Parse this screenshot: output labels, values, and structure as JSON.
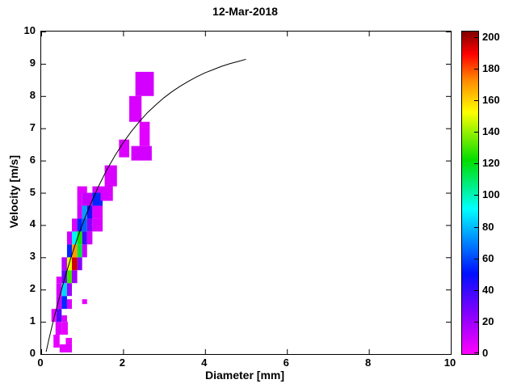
{
  "title": "12-Mar-2018",
  "axes": {
    "xlabel": "Diameter [mm]",
    "ylabel": "Velocity [m/s]",
    "xlim": [
      0,
      10
    ],
    "ylim": [
      0,
      10
    ],
    "xticks": [
      0,
      2,
      4,
      6,
      8,
      10
    ],
    "yticks": [
      0,
      1,
      2,
      3,
      4,
      5,
      6,
      7,
      8,
      9,
      10
    ]
  },
  "colorbar": {
    "min": 0,
    "max": 204,
    "ticks": [
      0,
      20,
      40,
      60,
      80,
      100,
      120,
      140,
      160,
      180,
      200
    ],
    "stops": [
      {
        "t": 0.0,
        "c": "#ff00ff"
      },
      {
        "t": 0.13,
        "c": "#8000ff"
      },
      {
        "t": 0.25,
        "c": "#0010ff"
      },
      {
        "t": 0.45,
        "c": "#00ffff"
      },
      {
        "t": 0.6,
        "c": "#00dd00"
      },
      {
        "t": 0.75,
        "c": "#ffff00"
      },
      {
        "t": 0.85,
        "c": "#ff8800"
      },
      {
        "t": 0.93,
        "c": "#ff0000"
      },
      {
        "t": 1.0,
        "c": "#7f0000"
      }
    ]
  },
  "chart_data": {
    "type": "heatmap",
    "title": "12-Mar-2018",
    "xlabel": "Diameter [mm]",
    "ylabel": "Velocity [m/s]",
    "xlim": [
      0,
      10
    ],
    "ylim": [
      0,
      10
    ],
    "grid": false,
    "legend": "colorbar-right",
    "cell_format": [
      "x_left_mm",
      "y_bottom_ms",
      "width_mm",
      "height_ms",
      "count_value"
    ],
    "cells": [
      [
        0.45,
        0.05,
        0.3,
        0.25,
        6
      ],
      [
        0.3,
        0.2,
        0.15,
        0.4,
        5
      ],
      [
        0.6,
        0.3,
        0.15,
        0.2,
        4
      ],
      [
        0.35,
        0.6,
        0.15,
        0.4,
        7
      ],
      [
        0.5,
        0.6,
        0.15,
        0.4,
        5
      ],
      [
        0.25,
        1.0,
        0.12,
        0.4,
        4
      ],
      [
        0.37,
        1.0,
        0.13,
        0.4,
        35
      ],
      [
        0.5,
        1.0,
        0.13,
        0.2,
        8
      ],
      [
        0.37,
        1.4,
        0.13,
        0.4,
        10
      ],
      [
        0.5,
        1.4,
        0.13,
        0.4,
        55
      ],
      [
        0.63,
        1.4,
        0.12,
        0.3,
        8
      ],
      [
        1.0,
        1.55,
        0.12,
        0.15,
        5
      ],
      [
        0.37,
        1.8,
        0.13,
        0.4,
        8
      ],
      [
        0.5,
        1.8,
        0.13,
        0.4,
        85
      ],
      [
        0.63,
        1.8,
        0.12,
        0.4,
        20
      ],
      [
        0.37,
        2.2,
        0.13,
        0.2,
        6
      ],
      [
        0.5,
        2.2,
        0.13,
        0.4,
        30
      ],
      [
        0.63,
        2.2,
        0.12,
        0.4,
        130
      ],
      [
        0.75,
        2.2,
        0.13,
        0.4,
        20
      ],
      [
        0.5,
        2.6,
        0.13,
        0.4,
        15
      ],
      [
        0.63,
        2.6,
        0.12,
        0.4,
        150
      ],
      [
        0.75,
        2.6,
        0.13,
        0.4,
        195
      ],
      [
        0.88,
        2.6,
        0.12,
        0.4,
        25
      ],
      [
        0.63,
        3.0,
        0.12,
        0.4,
        55
      ],
      [
        0.75,
        3.0,
        0.13,
        0.4,
        170
      ],
      [
        0.88,
        3.0,
        0.12,
        0.4,
        115
      ],
      [
        1.0,
        3.0,
        0.12,
        0.4,
        12
      ],
      [
        0.63,
        3.4,
        0.12,
        0.4,
        10
      ],
      [
        0.75,
        3.4,
        0.13,
        0.4,
        90
      ],
      [
        0.88,
        3.4,
        0.12,
        0.4,
        125
      ],
      [
        1.0,
        3.4,
        0.12,
        0.4,
        40
      ],
      [
        1.12,
        3.4,
        0.13,
        0.4,
        10
      ],
      [
        0.75,
        3.8,
        0.13,
        0.4,
        8
      ],
      [
        0.88,
        3.8,
        0.12,
        0.4,
        55
      ],
      [
        1.0,
        3.8,
        0.12,
        0.4,
        65
      ],
      [
        1.12,
        3.8,
        0.13,
        0.4,
        25
      ],
      [
        1.25,
        3.8,
        0.25,
        0.4,
        8
      ],
      [
        0.88,
        4.2,
        0.12,
        0.4,
        10
      ],
      [
        1.0,
        4.2,
        0.12,
        0.4,
        75
      ],
      [
        1.12,
        4.2,
        0.13,
        0.4,
        45
      ],
      [
        1.25,
        4.2,
        0.25,
        0.4,
        7
      ],
      [
        0.88,
        4.6,
        0.12,
        0.4,
        8
      ],
      [
        1.0,
        4.6,
        0.25,
        0.4,
        12
      ],
      [
        1.25,
        4.6,
        0.25,
        0.4,
        55
      ],
      [
        0.88,
        5.0,
        0.24,
        0.2,
        6
      ],
      [
        1.25,
        5.0,
        0.25,
        0.2,
        8
      ],
      [
        1.45,
        4.75,
        0.3,
        0.45,
        8
      ],
      [
        1.55,
        5.2,
        0.3,
        0.65,
        8
      ],
      [
        1.9,
        6.1,
        0.25,
        0.55,
        7
      ],
      [
        2.2,
        6.0,
        0.5,
        0.45,
        9
      ],
      [
        2.4,
        6.45,
        0.25,
        0.75,
        6
      ],
      [
        2.15,
        7.2,
        0.3,
        0.8,
        8
      ],
      [
        2.3,
        8.0,
        0.45,
        0.75,
        9
      ]
    ],
    "curve": {
      "name": "terminal-velocity-curve",
      "color": "#000000",
      "points": [
        [
          0.12,
          0.07
        ],
        [
          0.2,
          0.52
        ],
        [
          0.3,
          1.05
        ],
        [
          0.4,
          1.55
        ],
        [
          0.5,
          2.02
        ],
        [
          0.6,
          2.46
        ],
        [
          0.7,
          2.88
        ],
        [
          0.8,
          3.28
        ],
        [
          0.9,
          3.65
        ],
        [
          1.0,
          4.0
        ],
        [
          1.2,
          4.64
        ],
        [
          1.4,
          5.2
        ],
        [
          1.6,
          5.71
        ],
        [
          1.8,
          6.15
        ],
        [
          2.0,
          6.55
        ],
        [
          2.2,
          6.9
        ],
        [
          2.4,
          7.21
        ],
        [
          2.6,
          7.49
        ],
        [
          2.8,
          7.73
        ],
        [
          3.0,
          7.95
        ],
        [
          3.2,
          8.14
        ],
        [
          3.4,
          8.31
        ],
        [
          3.6,
          8.46
        ],
        [
          3.8,
          8.6
        ],
        [
          4.0,
          8.72
        ],
        [
          4.2,
          8.82
        ],
        [
          4.4,
          8.92
        ],
        [
          4.6,
          9.0
        ],
        [
          4.8,
          9.07
        ],
        [
          5.0,
          9.14
        ]
      ]
    }
  }
}
